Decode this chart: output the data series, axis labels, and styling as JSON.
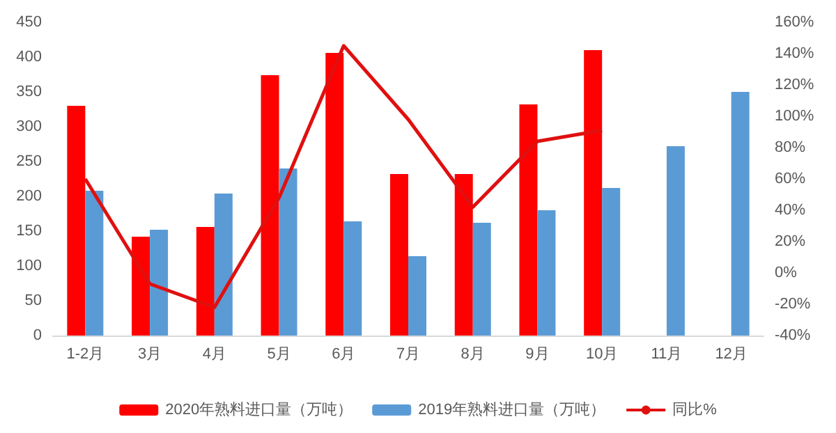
{
  "chart_data": {
    "type": "bar",
    "categories": [
      "1-2月",
      "3月",
      "4月",
      "5月",
      "6月",
      "7月",
      "8月",
      "9月",
      "10月",
      "11月",
      "12月"
    ],
    "series": [
      {
        "name": "2020年熟料进口量（万吨）",
        "color": "#ff0000",
        "values": [
          330,
          142,
          156,
          374,
          406,
          232,
          232,
          332,
          410,
          null,
          null
        ]
      },
      {
        "name": "2019年熟料进口量（万吨）",
        "color": "#5b9bd5",
        "values": [
          208,
          152,
          204,
          240,
          164,
          114,
          162,
          180,
          212,
          272,
          350
        ]
      },
      {
        "name": "同比%",
        "type": "line",
        "axis": "y2",
        "color": "#e01010",
        "values": [
          60,
          -7,
          -22,
          48,
          145,
          98,
          42,
          84,
          91,
          null,
          null
        ]
      }
    ],
    "ylim": [
      0,
      450
    ],
    "yticks": [
      0,
      50,
      100,
      150,
      200,
      250,
      300,
      350,
      400,
      450
    ],
    "y2lim": [
      -40,
      160
    ],
    "y2ticks": [
      {
        "value": -40,
        "label": "-40%"
      },
      {
        "value": -20,
        "label": "-20%"
      },
      {
        "value": 0,
        "label": "0%"
      },
      {
        "value": 20,
        "label": "20%"
      },
      {
        "value": 40,
        "label": "40%"
      },
      {
        "value": 60,
        "label": "60%"
      },
      {
        "value": 80,
        "label": "80%"
      },
      {
        "value": 100,
        "label": "100%"
      },
      {
        "value": 120,
        "label": "120%"
      },
      {
        "value": 140,
        "label": "140%"
      },
      {
        "value": 160,
        "label": "160%"
      }
    ],
    "legend": "bottom",
    "marker": "none",
    "grid": false
  }
}
